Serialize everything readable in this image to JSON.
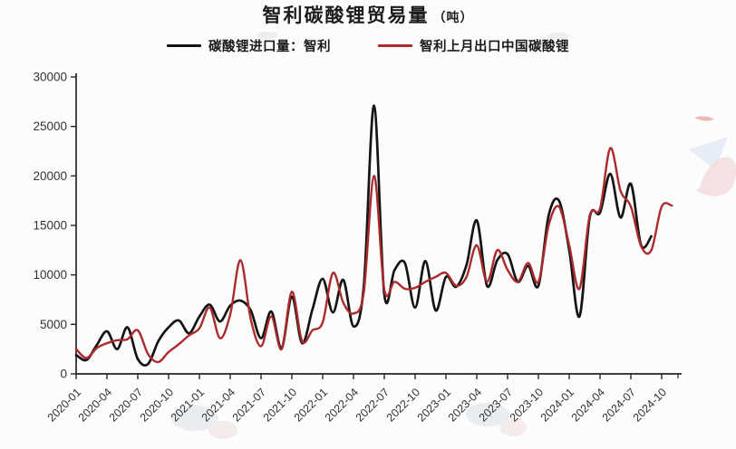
{
  "title": {
    "main": "智利碳酸锂贸易量",
    "unit": "（吨）"
  },
  "legend": [
    {
      "label": "碳酸锂进口量：智利",
      "color": "#141414"
    },
    {
      "label": "智利上月出口中国碳酸锂",
      "color": "#ab2a2e"
    }
  ],
  "colors": {
    "axis": "#262626",
    "tick_label": "#333333",
    "background": "#fcfcfc"
  },
  "chart_data": {
    "type": "line",
    "title": "智利碳酸锂贸易量（吨）",
    "xlabel": "",
    "ylabel": "",
    "ylim": [
      0,
      30000
    ],
    "yticks": [
      0,
      5000,
      10000,
      15000,
      20000,
      25000,
      30000
    ],
    "grid": false,
    "legend_position": "top",
    "smooth": true,
    "x": [
      "2020-01",
      "2020-02",
      "2020-03",
      "2020-04",
      "2020-05",
      "2020-06",
      "2020-07",
      "2020-08",
      "2020-09",
      "2020-10",
      "2020-11",
      "2020-12",
      "2021-01",
      "2021-02",
      "2021-03",
      "2021-04",
      "2021-05",
      "2021-06",
      "2021-07",
      "2021-08",
      "2021-09",
      "2021-10",
      "2021-11",
      "2021-12",
      "2022-01",
      "2022-02",
      "2022-03",
      "2022-04",
      "2022-05",
      "2022-06",
      "2022-07",
      "2022-08",
      "2022-09",
      "2022-10",
      "2022-11",
      "2022-12",
      "2023-01",
      "2023-02",
      "2023-03",
      "2023-04",
      "2023-05",
      "2023-06",
      "2023-07",
      "2023-08",
      "2023-09",
      "2023-10",
      "2023-11",
      "2023-12",
      "2024-01",
      "2024-02",
      "2024-03",
      "2024-04",
      "2024-05",
      "2024-06",
      "2024-07",
      "2024-08",
      "2024-09",
      "2024-10",
      "2024-11"
    ],
    "xtick_labels": [
      "2020-01",
      "2020-04",
      "2020-07",
      "2020-10",
      "2021-01",
      "2021-04",
      "2021-07",
      "2021-10",
      "2022-01",
      "2022-04",
      "2022-07",
      "2022-10",
      "2023-01",
      "2023-04",
      "2023-07",
      "2023-10",
      "2024-01",
      "2024-04",
      "2024-07",
      "2024-10"
    ],
    "series": [
      {
        "name": "碳酸锂进口量：智利",
        "color": "#141414",
        "values": [
          1900,
          1400,
          2900,
          4300,
          2500,
          4700,
          1500,
          1000,
          3300,
          4700,
          5400,
          4100,
          5800,
          7000,
          5300,
          6900,
          7400,
          6400,
          3600,
          6300,
          2600,
          7800,
          3100,
          6500,
          9600,
          6200,
          9500,
          4800,
          8800,
          27100,
          8000,
          10500,
          11200,
          6700,
          11400,
          6400,
          9800,
          8800,
          11000,
          15500,
          8900,
          11500,
          12100,
          9300,
          10900,
          8900,
          16000,
          17500,
          12500,
          5800,
          15800,
          16300,
          20200,
          15800,
          19200,
          13000,
          13900,
          null,
          null
        ]
      },
      {
        "name": "智利上月出口中国碳酸锂",
        "color": "#ab2a2e",
        "values": [
          2500,
          1600,
          2600,
          3100,
          3400,
          3500,
          4400,
          2000,
          1200,
          2200,
          3000,
          3900,
          4600,
          6700,
          3600,
          6000,
          11500,
          5500,
          2800,
          5800,
          2500,
          8300,
          3300,
          4400,
          5200,
          10200,
          7200,
          6100,
          8200,
          20000,
          8500,
          9300,
          8600,
          8700,
          9300,
          9800,
          10200,
          8900,
          9800,
          13000,
          9300,
          12500,
          10500,
          9300,
          11200,
          9300,
          15000,
          16900,
          13000,
          8600,
          16000,
          16700,
          22800,
          18500,
          16900,
          12900,
          12500,
          16900,
          17000
        ]
      }
    ]
  }
}
